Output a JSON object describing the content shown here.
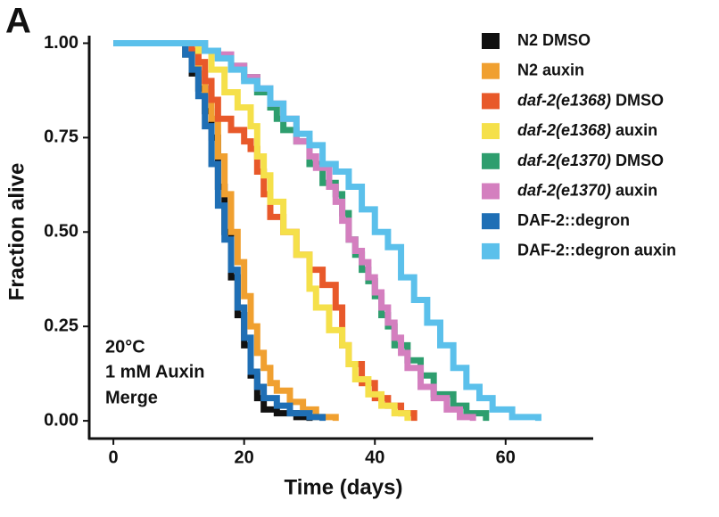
{
  "panel_label": "A",
  "chart_data": {
    "type": "step",
    "xlabel": "Time (days)",
    "ylabel": "Fraction alive",
    "annotations": [
      "20°C",
      "1 mM Auxin",
      "Merge"
    ],
    "xlim": [
      -3.7,
      73.4
    ],
    "xticks": [
      0,
      20,
      40,
      60
    ],
    "ylim": [
      -0.047,
      1.02
    ],
    "yticks": [
      {
        "value": 0,
        "label": "0.00"
      },
      {
        "value": 0.25,
        "label": "0.25"
      },
      {
        "value": 0.5,
        "label": "0.50"
      },
      {
        "value": 0.75,
        "label": "0.75"
      },
      {
        "value": 1,
        "label": "1.00"
      }
    ],
    "series": [
      {
        "name": "N2 DMSO",
        "color": "#111111",
        "x": [
          0,
          10,
          11,
          12,
          13,
          14,
          15,
          16,
          17,
          18,
          19,
          20,
          21,
          22,
          23,
          25,
          28,
          30
        ],
        "values": [
          1,
          1,
          0.97,
          0.92,
          0.88,
          0.82,
          0.75,
          0.62,
          0.5,
          0.38,
          0.28,
          0.2,
          0.12,
          0.06,
          0.03,
          0.02,
          0.01,
          0
        ]
      },
      {
        "name": "N2 auxin",
        "color": "#f0a030",
        "x": [
          0,
          12,
          13,
          14,
          15,
          16,
          17,
          18,
          19,
          20,
          21,
          22,
          23,
          24,
          25,
          27,
          29,
          31,
          34
        ],
        "values": [
          1,
          0.98,
          0.92,
          0.87,
          0.8,
          0.7,
          0.6,
          0.5,
          0.42,
          0.33,
          0.25,
          0.18,
          0.14,
          0.1,
          0.08,
          0.05,
          0.03,
          0.01,
          0
        ]
      },
      {
        "name": "daf-2(e1368) DMSO",
        "color": "#e8592a",
        "x": [
          0,
          12,
          13,
          14,
          15,
          16,
          18,
          20,
          21,
          22,
          23,
          24,
          26,
          28,
          30,
          32,
          34,
          35,
          36,
          38,
          40,
          42,
          44,
          46
        ],
        "values": [
          1,
          0.98,
          0.95,
          0.9,
          0.85,
          0.8,
          0.77,
          0.74,
          0.72,
          0.66,
          0.6,
          0.54,
          0.5,
          0.44,
          0.4,
          0.36,
          0.3,
          0.2,
          0.15,
          0.1,
          0.06,
          0.04,
          0.02,
          0
        ]
      },
      {
        "name": "daf-2(e1368) auxin",
        "color": "#f5e04a",
        "x": [
          0,
          13,
          15,
          17,
          19,
          21,
          22,
          23,
          24,
          26,
          28,
          30,
          31,
          33,
          35,
          36,
          37,
          39,
          41,
          43,
          45
        ],
        "values": [
          1,
          0.98,
          0.93,
          0.87,
          0.83,
          0.78,
          0.7,
          0.65,
          0.58,
          0.5,
          0.44,
          0.35,
          0.3,
          0.24,
          0.2,
          0.15,
          0.11,
          0.07,
          0.04,
          0.02,
          0
        ]
      },
      {
        "name": "daf-2(e1370) DMSO",
        "color": "#2e9e6e",
        "x": [
          0,
          12,
          14,
          16,
          18,
          20,
          22,
          24,
          25,
          26,
          28,
          30,
          32,
          34,
          35,
          36,
          37,
          38,
          39,
          40,
          41,
          42,
          43,
          45,
          47,
          49,
          52,
          54,
          57
        ],
        "values": [
          1,
          1,
          0.98,
          0.96,
          0.94,
          0.91,
          0.87,
          0.83,
          0.8,
          0.77,
          0.74,
          0.68,
          0.63,
          0.6,
          0.55,
          0.48,
          0.44,
          0.4,
          0.37,
          0.33,
          0.28,
          0.25,
          0.2,
          0.16,
          0.12,
          0.07,
          0.04,
          0.02,
          0
        ]
      },
      {
        "name": "daf-2(e1370) auxin",
        "color": "#d47fbf",
        "x": [
          0,
          14,
          16,
          18,
          20,
          22,
          24,
          26,
          28,
          30,
          31,
          33,
          34,
          35,
          36,
          37,
          38,
          39,
          40,
          41,
          42,
          43,
          44,
          45,
          47,
          49,
          51,
          53,
          55
        ],
        "values": [
          1,
          0.98,
          0.97,
          0.94,
          0.91,
          0.88,
          0.84,
          0.8,
          0.74,
          0.7,
          0.67,
          0.62,
          0.58,
          0.53,
          0.48,
          0.45,
          0.42,
          0.38,
          0.34,
          0.3,
          0.26,
          0.22,
          0.18,
          0.14,
          0.09,
          0.06,
          0.03,
          0.01,
          0
        ]
      },
      {
        "name": "DAF-2::degron",
        "color": "#1f6fb5",
        "x": [
          0,
          11,
          12,
          13,
          14,
          15,
          16,
          17,
          18,
          19,
          20,
          21,
          22,
          23,
          25,
          27,
          30,
          32
        ],
        "values": [
          1,
          0.97,
          0.93,
          0.86,
          0.78,
          0.68,
          0.57,
          0.48,
          0.4,
          0.3,
          0.22,
          0.13,
          0.09,
          0.06,
          0.04,
          0.02,
          0.01,
          0
        ]
      },
      {
        "name": "DAF-2::degron auxin",
        "color": "#5bc0eb",
        "x": [
          0,
          14,
          16,
          18,
          20,
          22,
          24,
          26,
          28,
          30,
          32,
          34,
          36,
          38,
          40,
          42,
          44,
          46,
          48,
          50,
          52,
          54,
          56,
          58,
          61,
          65
        ],
        "values": [
          1,
          0.98,
          0.96,
          0.93,
          0.9,
          0.88,
          0.84,
          0.8,
          0.76,
          0.73,
          0.68,
          0.66,
          0.62,
          0.56,
          0.5,
          0.46,
          0.38,
          0.32,
          0.26,
          0.2,
          0.14,
          0.09,
          0.06,
          0.03,
          0.01,
          0
        ]
      }
    ]
  }
}
